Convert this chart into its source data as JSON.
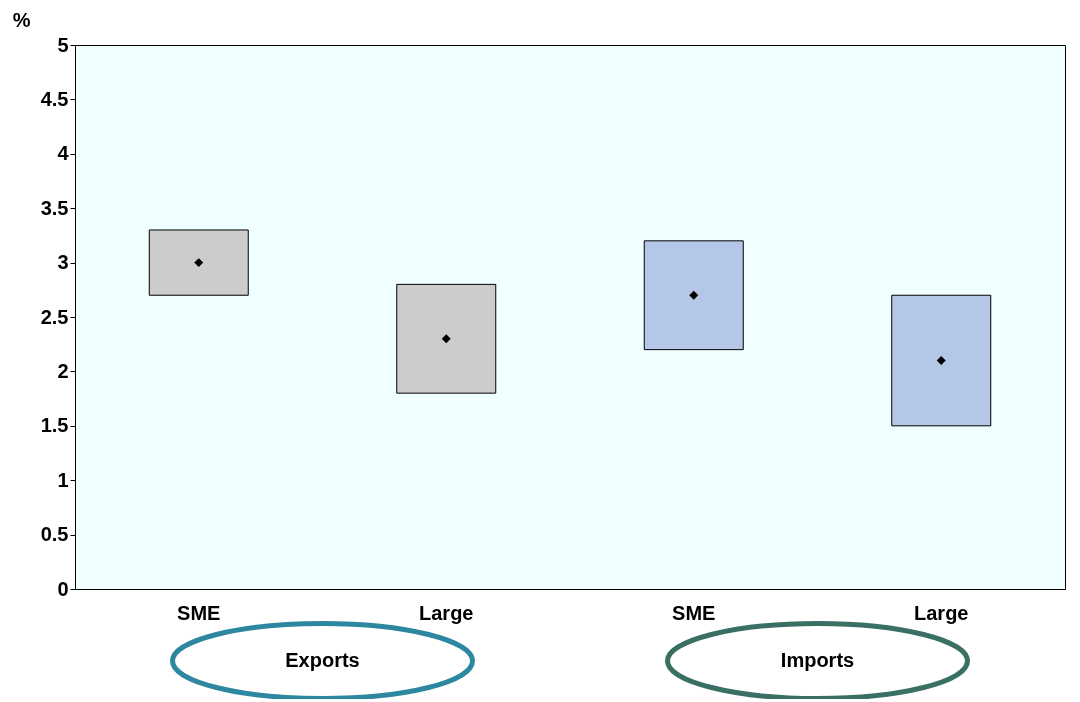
{
  "chart_data": {
    "type": "bar",
    "ylabel": "%",
    "categories": [
      "SME",
      "Large",
      "SME",
      "Large"
    ],
    "base": [
      2.7,
      1.8,
      2.2,
      1.5
    ],
    "values": [
      0.6,
      1.0,
      1.0,
      1.2
    ],
    "colors": [
      "#cccccc",
      "#cccccc",
      "#b4c7e7",
      "#b4c7e7"
    ],
    "series": [
      {
        "type": "scatter",
        "marker": "diamond",
        "color": "#000000",
        "values": [
          3.0,
          2.3,
          2.7,
          2.1
        ]
      }
    ],
    "ylim": [
      0,
      5
    ],
    "yticks": [
      0,
      0.5,
      1,
      1.5,
      2,
      2.5,
      3,
      3.5,
      4,
      4.5,
      5
    ],
    "grid": false,
    "annotations": [
      "Exports",
      "Imports"
    ]
  }
}
